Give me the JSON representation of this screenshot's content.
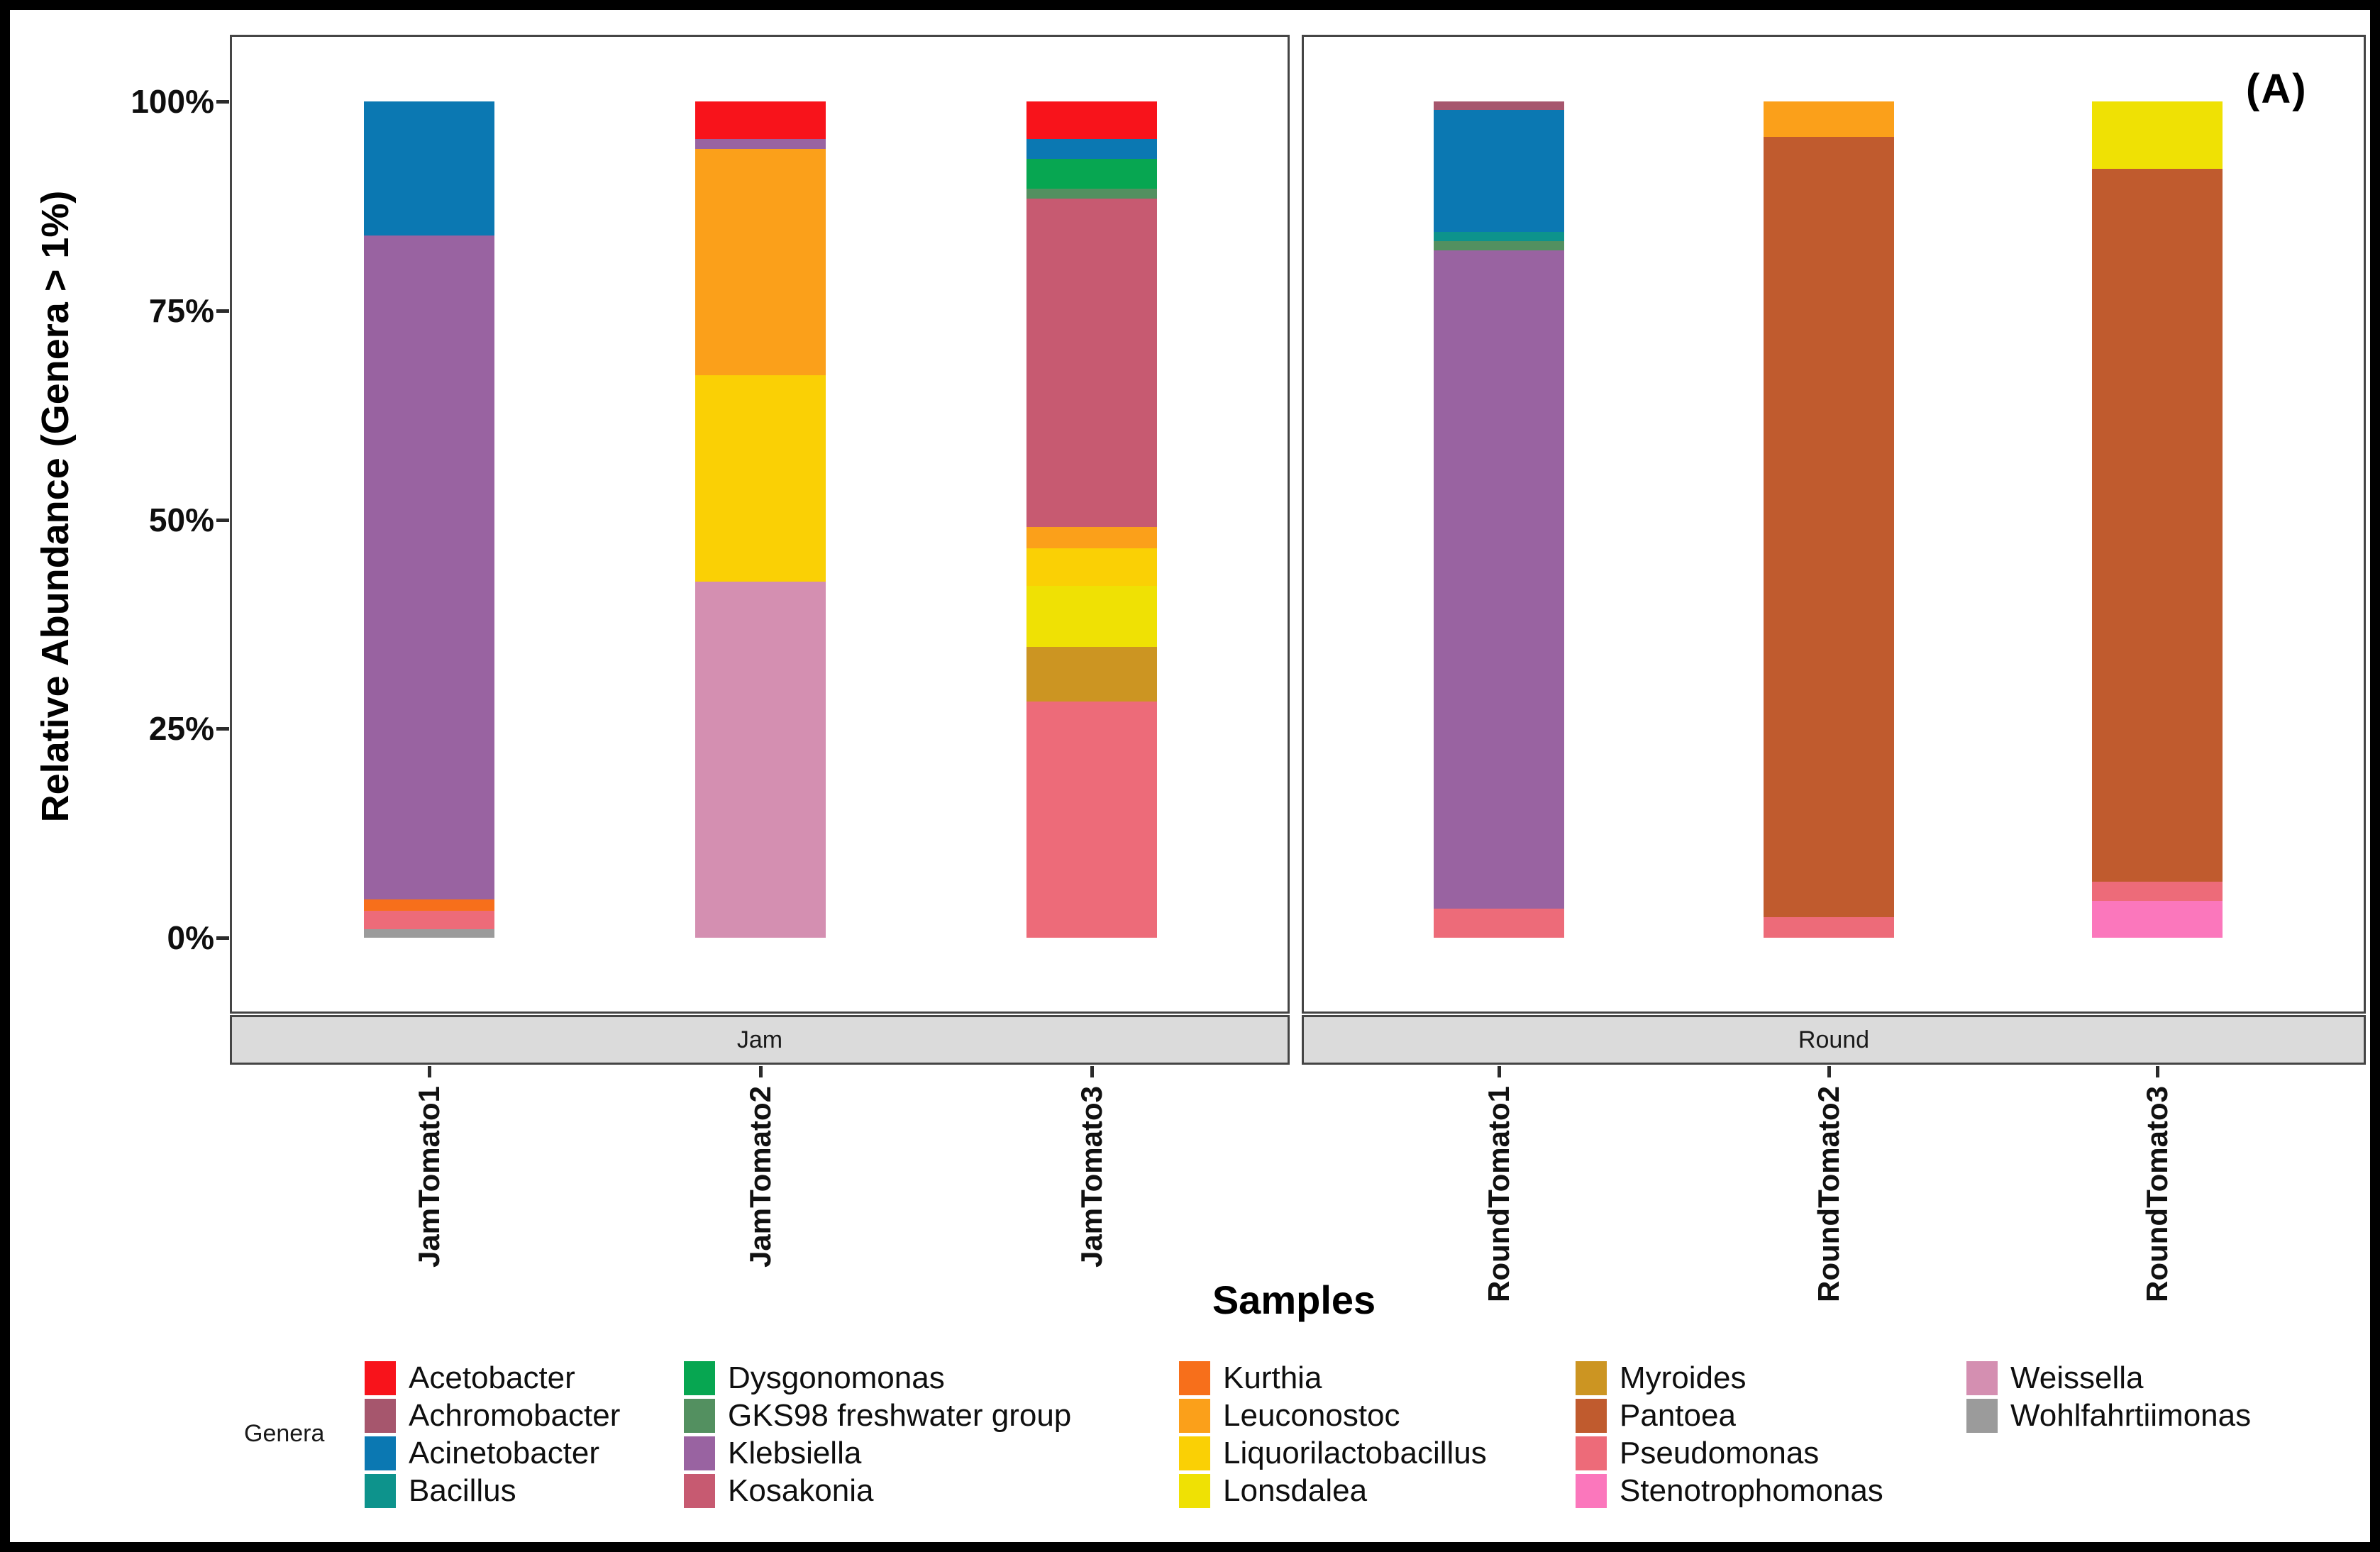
{
  "panel_label": "(A)",
  "y_axis": {
    "label": "Relative Abundance  (Genera > 1%)",
    "ticks": [
      "100%",
      "75%",
      "50%",
      "25%",
      "0%"
    ]
  },
  "x_axis": {
    "label": "Samples"
  },
  "legend": {
    "title": "Genera"
  },
  "chart_data": {
    "type": "bar",
    "stacked": true,
    "stack_unit": "percent",
    "ylim": [
      0,
      100
    ],
    "grid": false,
    "legend_position": "bottom",
    "categories": [
      "JamTomato1",
      "JamTomato2",
      "JamTomato3",
      "RoundTomato1",
      "RoundTomato2",
      "RoundTomato3"
    ],
    "facets": [
      {
        "label": "Jam",
        "category_indexes": [
          0,
          1,
          2
        ]
      },
      {
        "label": "Round",
        "category_indexes": [
          3,
          4,
          5
        ]
      }
    ],
    "series": [
      {
        "name": "Acetobacter",
        "color": "#F8131B",
        "values": [
          0,
          4.5,
          4.5,
          0,
          0,
          0
        ]
      },
      {
        "name": "Achromobacter",
        "color": "#A6566D",
        "values": [
          0,
          0,
          0,
          1.0,
          0,
          0
        ]
      },
      {
        "name": "Acinetobacter",
        "color": "#0B78B2",
        "values": [
          16.0,
          0,
          2.4,
          14.6,
          0,
          0
        ]
      },
      {
        "name": "Bacillus",
        "color": "#0D938C",
        "values": [
          0,
          0,
          0,
          1.1,
          0,
          0
        ]
      },
      {
        "name": "Dysgonomonas",
        "color": "#07A651",
        "values": [
          0,
          0,
          3.5,
          0,
          0,
          0
        ]
      },
      {
        "name": "GKS98 freshwater group",
        "color": "#539060",
        "values": [
          0,
          0,
          1.2,
          1.1,
          0,
          0
        ]
      },
      {
        "name": "Klebsiella",
        "color": "#9963A1",
        "values": [
          79.4,
          1.2,
          0,
          78.7,
          0,
          0
        ]
      },
      {
        "name": "Kosakonia",
        "color": "#C75A71",
        "values": [
          0,
          0,
          39.3,
          0,
          0,
          0
        ]
      },
      {
        "name": "Kurthia",
        "color": "#F76F1B",
        "values": [
          1.4,
          0,
          0,
          0,
          0,
          0
        ]
      },
      {
        "name": "Leuconostoc",
        "color": "#FBA01A",
        "values": [
          0,
          27.0,
          2.5,
          0,
          4.2,
          0
        ]
      },
      {
        "name": "Liquorilactobacillus",
        "color": "#FAD005",
        "values": [
          0,
          24.7,
          4.5,
          0,
          0,
          0
        ]
      },
      {
        "name": "Lonsdalea",
        "color": "#EFE104",
        "values": [
          0,
          0,
          7.3,
          0,
          0,
          8.1
        ]
      },
      {
        "name": "Myroides",
        "color": "#CC9522",
        "values": [
          0,
          0,
          6.6,
          0,
          0,
          0
        ]
      },
      {
        "name": "Pantoea",
        "color": "#C05B2E",
        "values": [
          0,
          0,
          0,
          0,
          93.3,
          85.2
        ]
      },
      {
        "name": "Pseudomonas",
        "color": "#ED6B79",
        "values": [
          2.2,
          0,
          28.2,
          3.5,
          2.5,
          2.3
        ]
      },
      {
        "name": "Stenotrophomonas",
        "color": "#FB77BC",
        "values": [
          0,
          0,
          0,
          0,
          0,
          4.4
        ]
      },
      {
        "name": "Weissella",
        "color": "#D48FB1",
        "values": [
          0,
          42.6,
          0,
          0,
          0,
          0
        ]
      },
      {
        "name": "Wohlfahrtiimonas",
        "color": "#9B9B9B",
        "values": [
          1.0,
          0,
          0,
          0,
          0,
          0
        ]
      }
    ]
  }
}
